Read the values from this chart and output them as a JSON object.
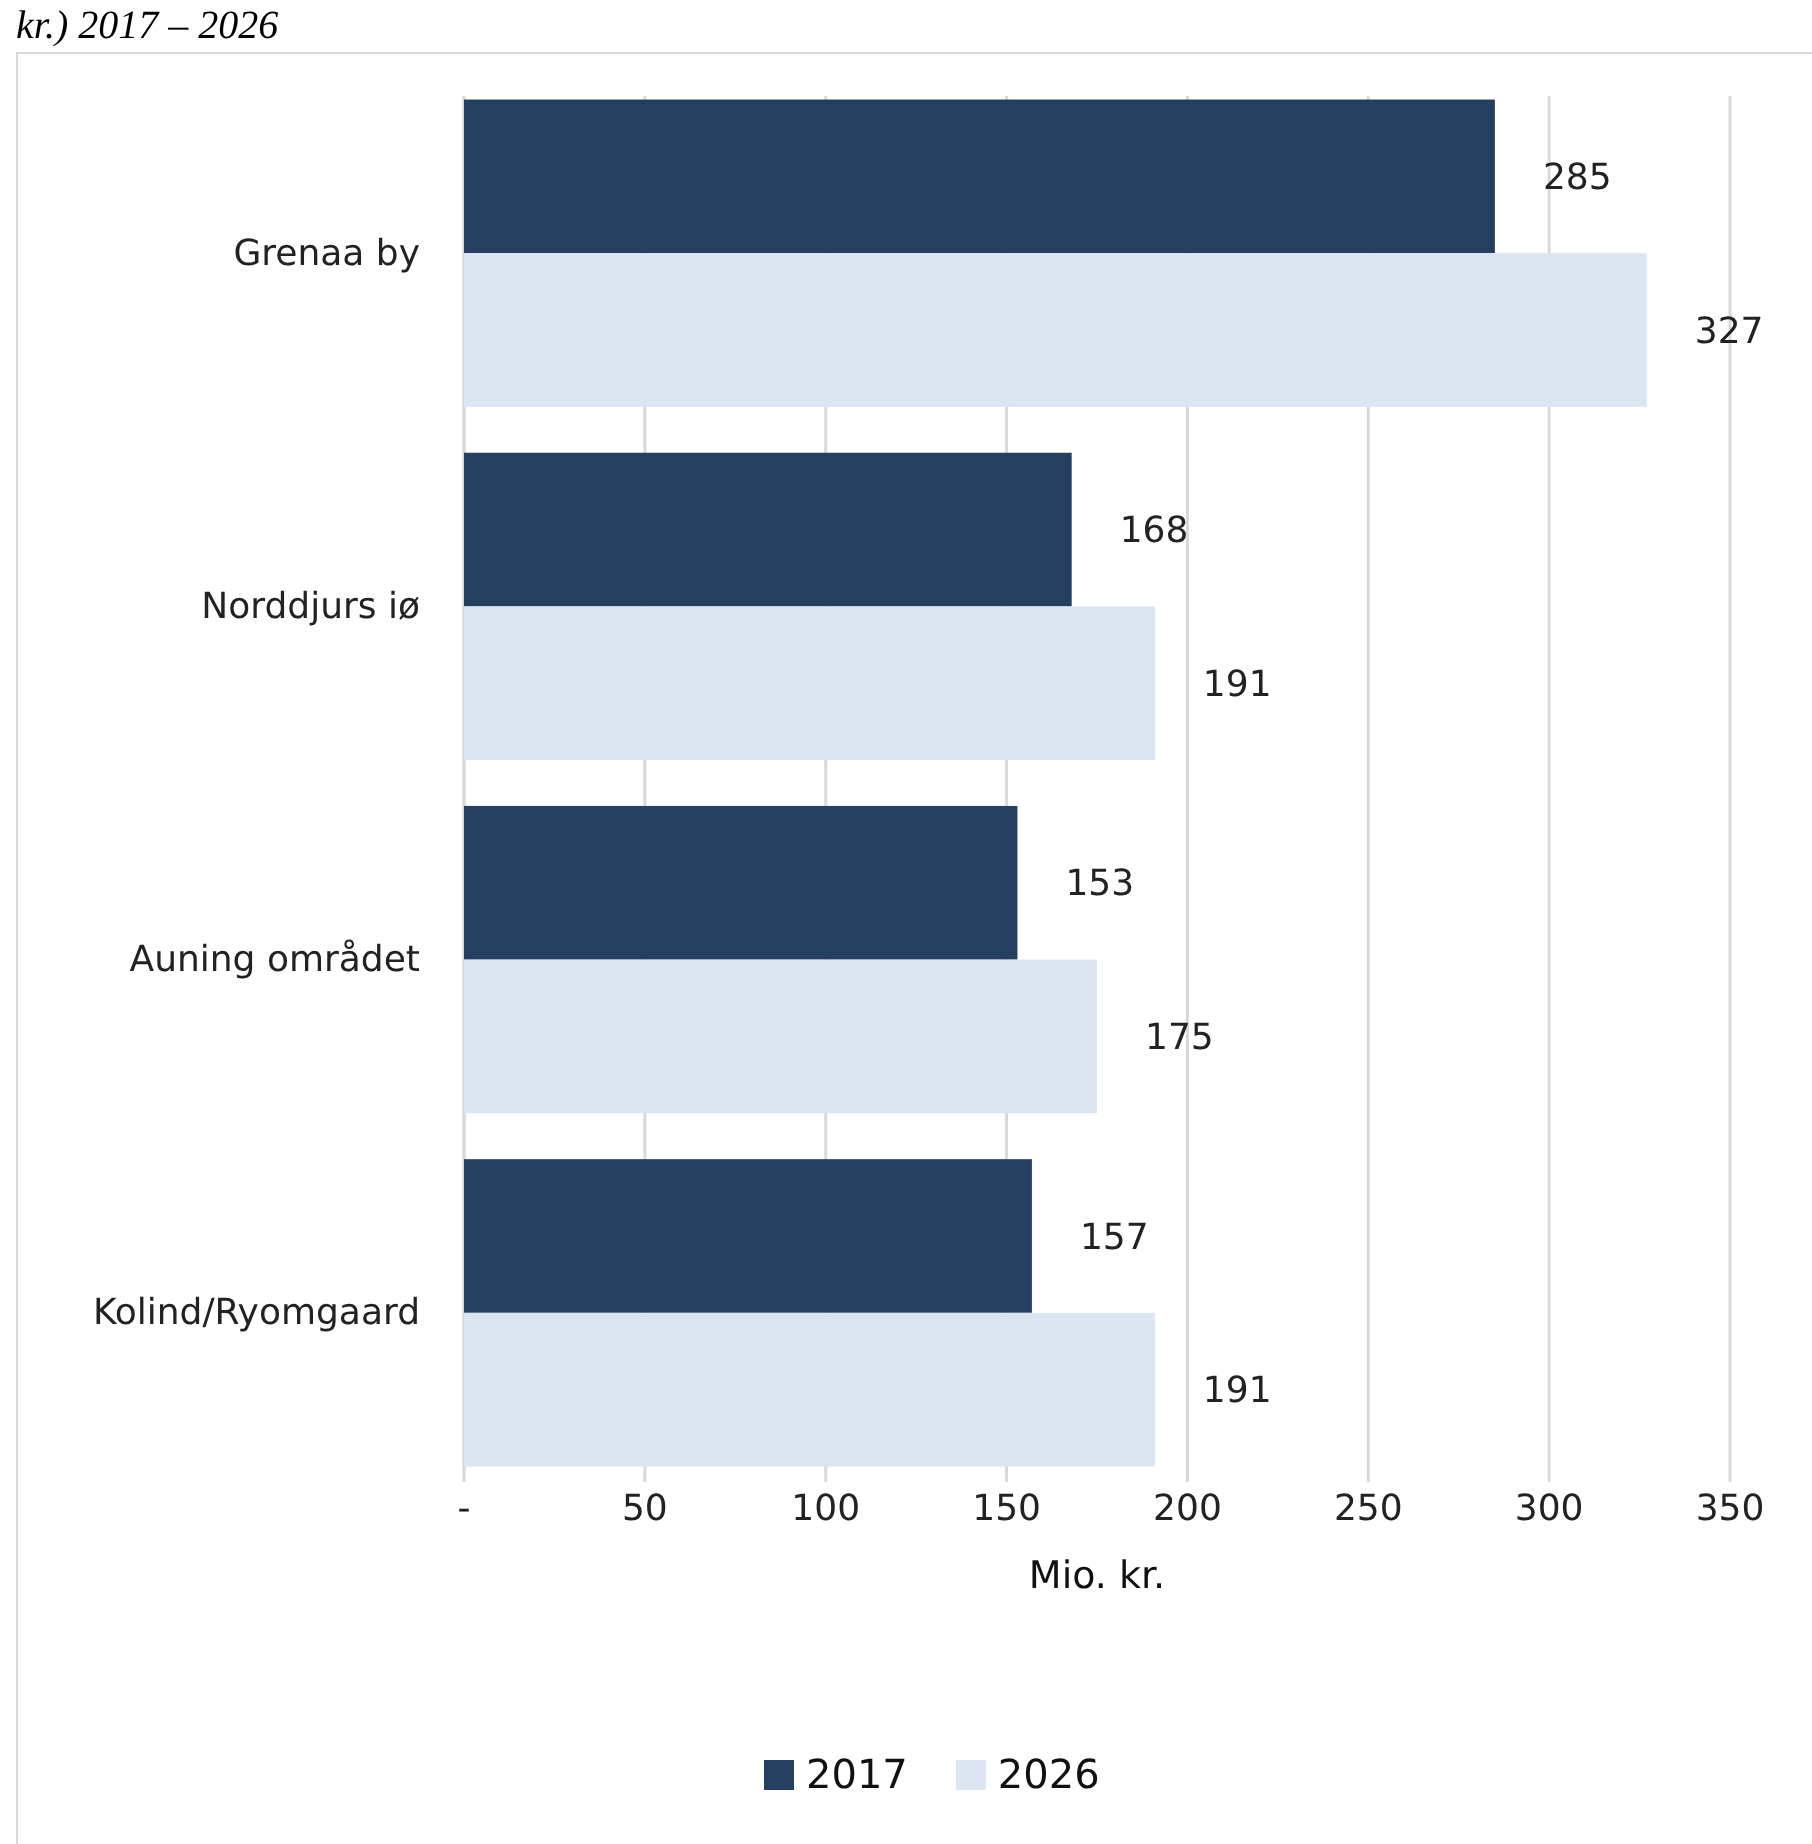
{
  "chart_data": {
    "type": "bar",
    "orientation": "horizontal",
    "title": "kr.) 2017 – 2026",
    "xlabel": "Mio. kr.",
    "categories": [
      "Grenaa by",
      "Norddjurs iø",
      "Auning området",
      "Kolind/Ryomgaard"
    ],
    "series": [
      {
        "name": "2017",
        "color": "#243f60",
        "values": [
          285,
          168,
          153,
          157
        ]
      },
      {
        "name": "2026",
        "color": "#dce6f2",
        "values": [
          327,
          191,
          175,
          191
        ]
      }
    ],
    "xlim": [
      0,
      350
    ],
    "xticks": [
      {
        "value": 0,
        "label": "-"
      },
      50,
      100,
      150,
      200,
      250,
      300,
      350
    ],
    "grid": "x",
    "legend": "bottom",
    "data_labels": true
  }
}
